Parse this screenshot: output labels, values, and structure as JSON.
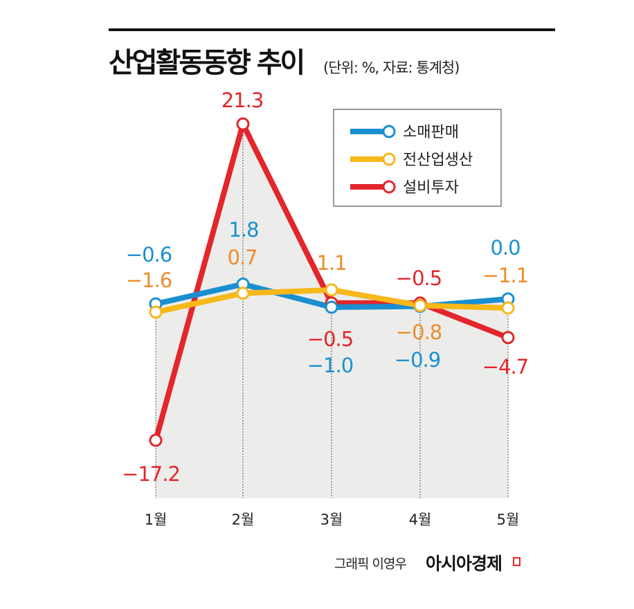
{
  "title": "산업활동동향 추이",
  "unit_note": "(단위: %, 자료: 통계청)",
  "credit": "그래픽 이영우",
  "brand": "아시아경제",
  "chart_data": {
    "type": "line",
    "categories": [
      "1월",
      "2월",
      "3월",
      "4월",
      "5월"
    ],
    "series": [
      {
        "name": "소매판매",
        "values": [
          -0.6,
          1.8,
          -1.0,
          -0.9,
          0.0
        ],
        "color": "#1a8fd0",
        "label_color": "#1a8fd0"
      },
      {
        "name": "전산업생산",
        "values": [
          -1.6,
          0.7,
          1.1,
          -0.8,
          -1.1
        ],
        "color": "#f7b81a",
        "label_color": "#ec8c2a"
      },
      {
        "name": "설비투자",
        "values": [
          -17.2,
          21.3,
          -0.5,
          -0.5,
          -4.7
        ],
        "color": "#e3262b",
        "label_color": "#e3262b"
      }
    ],
    "legend": "top-right",
    "grid": false
  }
}
